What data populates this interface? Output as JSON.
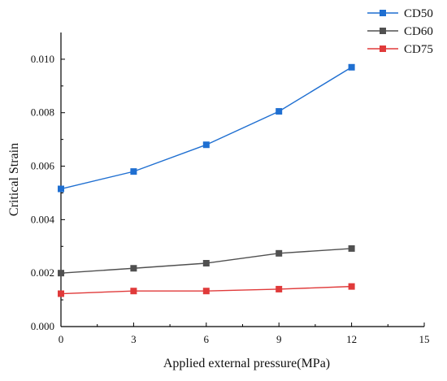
{
  "chart_data": {
    "type": "line",
    "title": "",
    "xlabel": "Applied external pressure(MPa)",
    "ylabel": "Critical Strain",
    "xlim": [
      0,
      15
    ],
    "ylim": [
      0,
      0.011
    ],
    "x_ticks": [
      0,
      3,
      6,
      9,
      12,
      15
    ],
    "x_tick_labels": [
      "0",
      "3",
      "6",
      "9",
      "12",
      "15"
    ],
    "y_ticks": [
      0,
      0.002,
      0.004,
      0.006,
      0.008,
      0.01
    ],
    "y_tick_labels": [
      "0.000",
      "0.002",
      "0.004",
      "0.006",
      "0.008",
      "0.010"
    ],
    "grid": false,
    "legend_position": "top-right, outside plot",
    "x": [
      0,
      3,
      6,
      9,
      12
    ],
    "series": [
      {
        "name": "CD50",
        "color": "#1f6fd1",
        "marker": "square",
        "values": [
          0.00515,
          0.0058,
          0.0068,
          0.00805,
          0.0097
        ]
      },
      {
        "name": "CD60",
        "color": "#505050",
        "marker": "square",
        "values": [
          0.002,
          0.00218,
          0.00237,
          0.00274,
          0.00292
        ]
      },
      {
        "name": "CD75",
        "color": "#e03a3a",
        "marker": "square",
        "values": [
          0.00123,
          0.00133,
          0.00133,
          0.0014,
          0.0015
        ]
      }
    ]
  }
}
